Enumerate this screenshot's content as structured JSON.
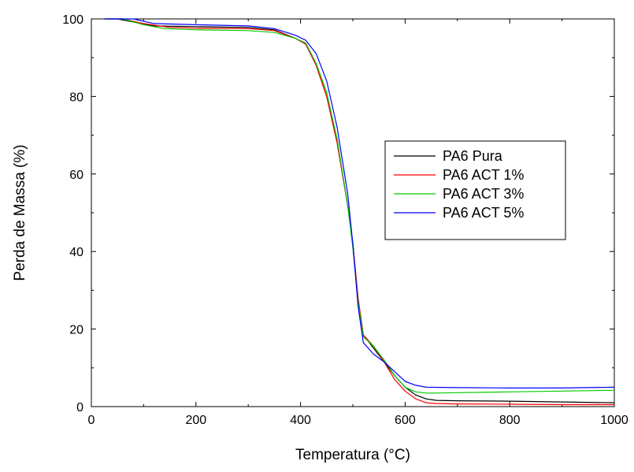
{
  "chart_data": {
    "type": "line",
    "xlabel": "Temperatura (°C)",
    "ylabel": "Perda de Massa (%)",
    "xlim": [
      0,
      1000
    ],
    "ylim": [
      0,
      100
    ],
    "xticks": [
      0,
      200,
      400,
      600,
      800,
      1000
    ],
    "yticks": [
      0,
      20,
      40,
      60,
      80,
      100
    ],
    "grid": false,
    "legend_position": "center-right",
    "series": [
      {
        "name": "PA6 Pura",
        "color": "#000000",
        "x": [
          25,
          50,
          80,
          120,
          200,
          300,
          350,
          390,
          410,
          430,
          450,
          470,
          490,
          500,
          510,
          520,
          540,
          560,
          580,
          600,
          620,
          640,
          660,
          700,
          800,
          900,
          1000
        ],
        "y": [
          100,
          100,
          99.2,
          98.2,
          98.0,
          97.8,
          97.2,
          95.0,
          93.5,
          88.0,
          80.0,
          68.0,
          52.0,
          42.0,
          28.0,
          18.5,
          15.0,
          11.5,
          8.0,
          5.0,
          3.0,
          2.0,
          1.6,
          1.5,
          1.4,
          1.2,
          1.0
        ]
      },
      {
        "name": "PA6 ACT 1%",
        "color": "#ff0000",
        "x": [
          25,
          60,
          100,
          150,
          200,
          300,
          350,
          390,
          410,
          430,
          450,
          470,
          490,
          500,
          510,
          520,
          540,
          560,
          580,
          600,
          620,
          640,
          660,
          700,
          800,
          900,
          1000
        ],
        "y": [
          100,
          100,
          98.8,
          97.8,
          97.6,
          97.5,
          97.0,
          95.0,
          93.5,
          88.0,
          80.0,
          68.0,
          52.0,
          42.0,
          28.0,
          18.5,
          15.5,
          11.5,
          7.0,
          4.0,
          2.0,
          1.0,
          0.8,
          0.7,
          0.6,
          0.5,
          0.5
        ]
      },
      {
        "name": "PA6 ACT 3%",
        "color": "#00cc00",
        "x": [
          25,
          60,
          100,
          140,
          200,
          300,
          350,
          390,
          410,
          430,
          450,
          470,
          490,
          500,
          510,
          520,
          540,
          560,
          580,
          600,
          620,
          640,
          660,
          700,
          800,
          900,
          1000
        ],
        "y": [
          100,
          100,
          98.5,
          97.5,
          97.2,
          97.0,
          96.5,
          95.0,
          93.8,
          88.5,
          81.0,
          69.0,
          52.0,
          41.0,
          27.0,
          18.0,
          15.5,
          12.0,
          8.0,
          5.0,
          3.8,
          3.5,
          3.5,
          3.6,
          3.8,
          4.0,
          4.2
        ]
      },
      {
        "name": "PA6 ACT 5%",
        "color": "#0000ff",
        "x": [
          25,
          50,
          80,
          120,
          200,
          300,
          350,
          390,
          410,
          430,
          450,
          470,
          490,
          500,
          510,
          520,
          540,
          560,
          580,
          600,
          620,
          640,
          700,
          800,
          900,
          1000
        ],
        "y": [
          100,
          100,
          100,
          98.8,
          98.5,
          98.2,
          97.5,
          95.8,
          94.5,
          91.0,
          84.0,
          72.0,
          55.0,
          42.0,
          26.0,
          16.5,
          13.5,
          11.5,
          9.0,
          6.5,
          5.5,
          5.0,
          4.9,
          4.8,
          4.8,
          5.0
        ]
      }
    ]
  }
}
